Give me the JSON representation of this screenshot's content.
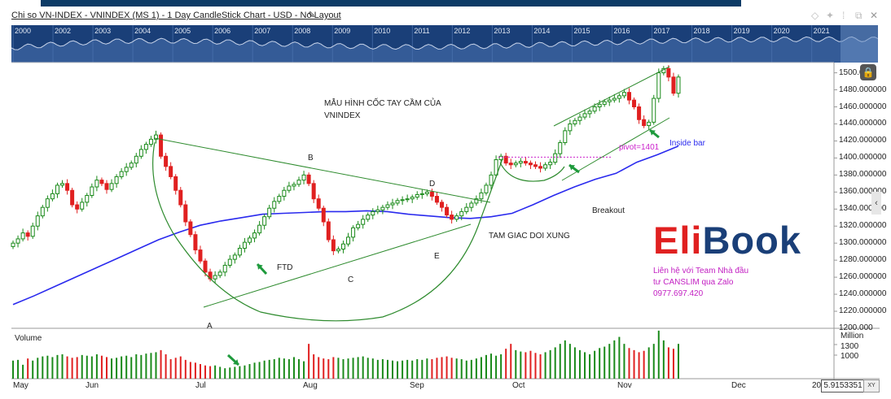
{
  "header": {
    "title": "Chi so VN-INDEX - VNINDEX (MS 1) - 1 Day CandleStick Chart - USD - No Layout",
    "edit_icon": "pencil-icon"
  },
  "navigator": {
    "years": [
      "2000",
      "2002",
      "2003",
      "2004",
      "2005",
      "2006",
      "2007",
      "2008",
      "2009",
      "2010",
      "2011",
      "2012",
      "2013",
      "2014",
      "2015",
      "2016",
      "2017",
      "2018",
      "2019",
      "2020",
      "2021"
    ]
  },
  "chart_data": {
    "type": "candlestick",
    "title": "Chi so VN-INDEX - VNINDEX (MS 1) - 1 Day CandleStick Chart - USD - No Layout",
    "x_months": [
      "May",
      "Jun",
      "Jul",
      "Aug",
      "Sep",
      "Oct",
      "Nov",
      "Dec"
    ],
    "x_tail_label": "20",
    "y_ticks": [
      "1500.0",
      "1480.000000",
      "1460.000000",
      "1440.000000",
      "1420.000000",
      "1400.000000",
      "1380.000000",
      "1360.000000",
      "1340.000000",
      "1320.000000",
      "1300.000000",
      "1280.000000",
      "1260.000000",
      "1240.000000",
      "1220.000000",
      "1200.000"
    ],
    "y_range": [
      1200,
      1512
    ],
    "closes": [
      1300,
      1305,
      1312,
      1308,
      1320,
      1332,
      1342,
      1352,
      1358,
      1368,
      1370,
      1362,
      1345,
      1340,
      1348,
      1356,
      1366,
      1374,
      1370,
      1363,
      1370,
      1378,
      1384,
      1389,
      1394,
      1402,
      1410,
      1416,
      1422,
      1427,
      1402,
      1390,
      1378,
      1362,
      1345,
      1325,
      1310,
      1292,
      1279,
      1266,
      1258,
      1262,
      1266,
      1274,
      1281,
      1286,
      1294,
      1301,
      1306,
      1312,
      1321,
      1331,
      1341,
      1349,
      1355,
      1362,
      1367,
      1369,
      1374,
      1380,
      1370,
      1352,
      1341,
      1325,
      1304,
      1291,
      1293,
      1299,
      1307,
      1318,
      1322,
      1328,
      1333,
      1337,
      1339,
      1342,
      1345,
      1347,
      1350,
      1351,
      1352,
      1354,
      1357,
      1358,
      1360,
      1355,
      1348,
      1342,
      1333,
      1328,
      1332,
      1337,
      1342,
      1347,
      1352,
      1359,
      1368,
      1380,
      1398,
      1402,
      1394,
      1392,
      1394,
      1396,
      1394,
      1392,
      1390,
      1388,
      1392,
      1395,
      1405,
      1418,
      1432,
      1440,
      1444,
      1448,
      1452,
      1455,
      1460,
      1463,
      1466,
      1468,
      1470,
      1473,
      1477,
      1468,
      1460,
      1445,
      1438,
      1442,
      1470,
      1500,
      1505,
      1495,
      1476,
      1495
    ],
    "ma_values": [
      1228,
      1238,
      1249,
      1260,
      1271,
      1282,
      1293,
      1304,
      1313,
      1321,
      1326,
      1330,
      1334,
      1335,
      1336,
      1337,
      1337,
      1338,
      1337,
      1334,
      1332,
      1330,
      1329,
      1331,
      1335,
      1345,
      1356,
      1366,
      1375,
      1382,
      1395,
      1404,
      1414
    ],
    "volume": {
      "label": "Volume",
      "unit": "Million",
      "ticks": [
        "1300",
        "1000"
      ],
      "bars": [
        520,
        540,
        400,
        580,
        520,
        600,
        640,
        660,
        620,
        680,
        700,
        640,
        600,
        620,
        680,
        660,
        640,
        700,
        660,
        620,
        580,
        600,
        640,
        660,
        620,
        700,
        680,
        720,
        740,
        760,
        820,
        700,
        560,
        600,
        640,
        540,
        480,
        460,
        420,
        380,
        360,
        380,
        340,
        300,
        320,
        340,
        360,
        380,
        420,
        460,
        480,
        520,
        540,
        560,
        600,
        580,
        560,
        620,
        560,
        500,
        1000,
        700,
        620,
        580,
        560,
        620,
        600,
        560,
        580,
        600,
        620,
        640,
        600,
        580,
        540,
        560,
        540,
        520,
        500,
        520,
        540,
        520,
        560,
        540,
        580,
        560,
        600,
        620,
        640,
        600,
        580,
        560,
        520,
        540,
        580,
        620,
        680,
        720,
        660,
        700,
        860,
        1000,
        820,
        780,
        760,
        800,
        740,
        700,
        760,
        820,
        900,
        1000,
        1100,
        1000,
        900,
        820,
        760,
        700,
        800,
        880,
        920,
        1000,
        1100,
        1200,
        1000,
        880,
        820,
        760,
        800,
        900,
        1000,
        1380,
        1100,
        900,
        860,
        1000
      ]
    },
    "annotations": {
      "pattern_title": "MẪU HÌNH CỐC TAY CẦM CỦA",
      "pattern_title_2": "VNINDEX",
      "b": "B",
      "d": "D",
      "a": "A",
      "c": "C",
      "e": "E",
      "ftd": "FTD",
      "triangle": "TAM GIAC DOI XUNG",
      "breakout": "Breakout",
      "pivot": "pivot=1401",
      "inside_bar": "Inside bar"
    },
    "pivot_value": 1401
  },
  "last_value": "5.9153351",
  "xy_button": "XY",
  "watermark": {
    "brand_part1": "Eli",
    "brand_part2": "Bo",
    "brand_part3": "ok",
    "contact_line1": "Liên hệ với Team Nhà đầu",
    "contact_line2": "tư CANSLIM qua Zalo",
    "contact_line3": "0977.697.420"
  },
  "colors": {
    "up": "#1a8a1a",
    "down": "#e02020",
    "ma": "#2a2aee",
    "annotation_line": "#2e8b2e",
    "pivot": "#cc22cc",
    "navigator_bg": "#1a3f78"
  }
}
